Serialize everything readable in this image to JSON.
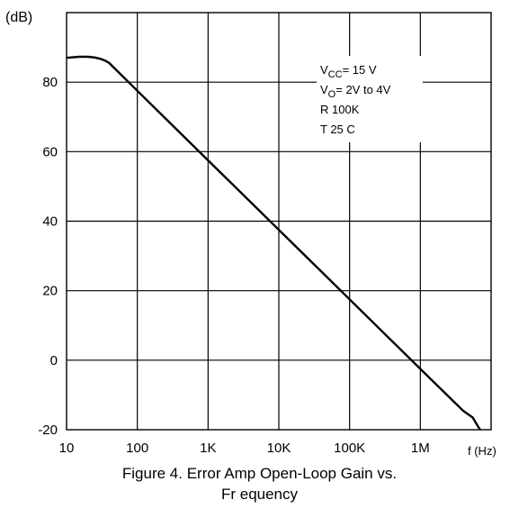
{
  "chart_data": {
    "type": "line",
    "ylabel": "(dB)",
    "xlabel": "f (Hz)",
    "x_scale": "log",
    "xlim": [
      10,
      10000000
    ],
    "ylim": [
      -20,
      100
    ],
    "grid": true,
    "x_ticks": [
      "10",
      "100",
      "1K",
      "10K",
      "100K",
      "1M"
    ],
    "y_ticks": [
      "80",
      "60",
      "40",
      "20",
      "0",
      "-20"
    ],
    "series": [
      {
        "x": [
          10,
          15,
          20,
          25,
          30,
          35,
          40,
          100,
          1000,
          10000,
          100000,
          1000000,
          2000000,
          4000000,
          5500000,
          6500000,
          7000000
        ],
        "y": [
          87,
          87.3,
          87.3,
          87.1,
          86.7,
          86.2,
          85.5,
          77.5,
          57.5,
          37.5,
          17.5,
          -2.5,
          -8.5,
          -14.5,
          -16.5,
          -19,
          -20
        ]
      }
    ],
    "annotation": {
      "lines": [
        {
          "label": "V",
          "sub": "CC",
          "rest": "=   15 V"
        },
        {
          "label": "V",
          "sub": "O",
          "rest": "=   2V to 4V"
        },
        {
          "label": "R",
          "sub": "",
          "rest": "    100K"
        },
        {
          "label": "T",
          "sub": "",
          "rest": "    25   C"
        }
      ]
    }
  },
  "caption": {
    "line1": "Figure 4. Error Amp Open-Loop Gain vs.",
    "line2": "Fr          equency"
  }
}
